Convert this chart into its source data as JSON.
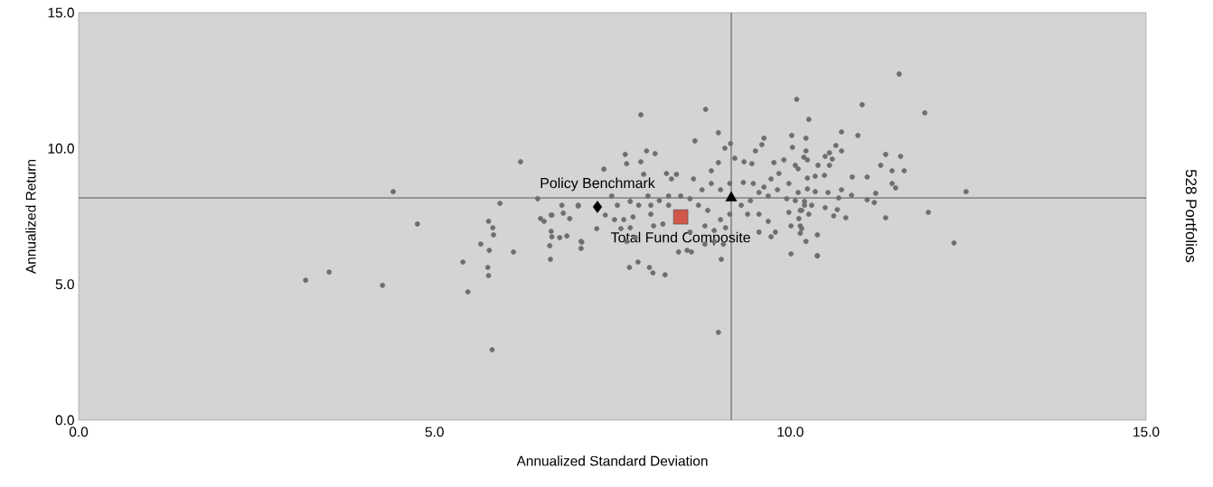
{
  "chart_data": {
    "type": "scatter",
    "xlabel": "Annualized Standard Deviation",
    "ylabel": "Annualized Return",
    "annotations": [
      "528 Portfolios"
    ],
    "xlim": [
      0,
      15
    ],
    "ylim": [
      0,
      15
    ],
    "xticks": [
      {
        "value": 0,
        "label": "0.0"
      },
      {
        "value": 5,
        "label": "5.0"
      },
      {
        "value": 10,
        "label": "10.0"
      },
      {
        "value": 15,
        "label": "15.0"
      }
    ],
    "yticks": [
      {
        "value": 0,
        "label": "0.0"
      },
      {
        "value": 5,
        "label": "5.0"
      },
      {
        "value": 10,
        "label": "10.0"
      },
      {
        "value": 15,
        "label": "15.0"
      }
    ],
    "grid": false,
    "ref_lines": [
      {
        "axis": "x",
        "value": 9.17,
        "color": "#555555"
      },
      {
        "axis": "y",
        "value": 8.18,
        "color": "#555555"
      }
    ],
    "series": [
      {
        "color": "#6e6e6e",
        "marker": "circle",
        "x": [
          3.19,
          3.52,
          4.27,
          4.42,
          4.76,
          5.4,
          5.47,
          5.65,
          5.75,
          5.76,
          5.76,
          5.81,
          5.83,
          5.92,
          6.11,
          6.21,
          6.45,
          6.49,
          6.62,
          6.63,
          6.65,
          6.65,
          6.76,
          6.79,
          6.9,
          5.82,
          5.77,
          6.64,
          6.86,
          6.81,
          6.64,
          6.54,
          7.02,
          7.07,
          7.06,
          7.9,
          8.81,
          8.99,
          8.66,
          10.09,
          7.68,
          7.98,
          8.1,
          7.7,
          7.9,
          7.38,
          7.86,
          7.74,
          8.02,
          8.07,
          8.24,
          8.43,
          8.55,
          8.61,
          9.03,
          8.99,
          10.01,
          10.38,
          11.53,
          11.89,
          11.01,
          10.95,
          10.72,
          10.26,
          11.34,
          11.55,
          11.6,
          11.27,
          11.43,
          11.43,
          11.48,
          11.08,
          11.2,
          11.18,
          11.08,
          11.34,
          11.94,
          12.3,
          12.47,
          10.78,
          10.66,
          10.61,
          10.38,
          10.38,
          10.22,
          10.86,
          10.68,
          10.53,
          10.87,
          10.72,
          10.72,
          10.64,
          10.55,
          10.49,
          10.59,
          10.55,
          10.22,
          10.22,
          9.22,
          9.35,
          9.46,
          9.63,
          9.6,
          9.51,
          9.77,
          9.91,
          10.02,
          10.03,
          10.19,
          8.89,
          8.99,
          9.08,
          9.16,
          8.64,
          8.76,
          8.89,
          9.02,
          9.15,
          9.34,
          9.48,
          9.63,
          9.73,
          9.84,
          9.98,
          10.11,
          10.24,
          9.82,
          9.95,
          10.07,
          10.2,
          9.69,
          9.56,
          9.44,
          9.31,
          9.4,
          9.56,
          9.69,
          9.56,
          9.73,
          9.79,
          9.98,
          10.16,
          10.14,
          10.01,
          9.15,
          9.02,
          8.84,
          8.71,
          8.59,
          8.46,
          8.29,
          8.16,
          8.04,
          7.87,
          7.75,
          7.57,
          7.49,
          7.4,
          7.53,
          7.66,
          7.79,
          7.75,
          7.62,
          8.04,
          8.08,
          8.21,
          8.29,
          8.8,
          8.93,
          9.09,
          8.8,
          8.93,
          9.06,
          8.59,
          7.7,
          7.82,
          7.06,
          8.26,
          8.4,
          8.33,
          7.94,
          8.0,
          7.28,
          7.02,
          10.07,
          10.35,
          10.48,
          10.39,
          10.24,
          10.11,
          10.24,
          10.35,
          10.2,
          10.3,
          10.14,
          10.26,
          10.12,
          10.16,
          10.14,
          10.49
        ],
        "values": [
          5.15,
          5.45,
          4.96,
          8.41,
          7.22,
          5.82,
          4.72,
          6.48,
          5.62,
          7.32,
          5.32,
          2.59,
          6.82,
          7.98,
          6.19,
          9.51,
          8.15,
          7.42,
          6.42,
          5.92,
          7.55,
          6.75,
          6.72,
          7.91,
          7.42,
          7.08,
          6.25,
          6.95,
          6.78,
          7.62,
          7.55,
          7.32,
          7.88,
          6.55,
          6.32,
          11.24,
          11.44,
          10.58,
          10.28,
          11.81,
          9.78,
          9.91,
          9.81,
          9.44,
          9.51,
          9.24,
          5.82,
          5.62,
          5.62,
          5.42,
          5.35,
          6.19,
          6.25,
          6.19,
          5.92,
          3.23,
          6.12,
          6.05,
          12.74,
          11.31,
          11.61,
          10.48,
          10.61,
          11.07,
          9.78,
          9.71,
          9.18,
          9.38,
          9.18,
          8.71,
          8.55,
          8.95,
          8.35,
          8.01,
          8.11,
          7.45,
          7.65,
          6.52,
          8.41,
          7.45,
          7.75,
          7.52,
          6.82,
          6.05,
          6.58,
          8.28,
          8.18,
          8.38,
          8.95,
          8.48,
          9.91,
          10.11,
          9.84,
          9.71,
          9.61,
          9.38,
          10.38,
          9.91,
          9.64,
          9.51,
          9.44,
          10.38,
          10.14,
          9.91,
          9.48,
          9.58,
          10.48,
          10.04,
          9.68,
          9.18,
          9.48,
          10.01,
          10.18,
          8.88,
          8.48,
          8.71,
          8.48,
          8.71,
          8.75,
          8.71,
          8.58,
          8.88,
          9.08,
          8.71,
          9.25,
          8.91,
          8.48,
          8.15,
          8.08,
          7.91,
          8.25,
          8.38,
          8.08,
          7.91,
          7.58,
          7.58,
          7.32,
          6.92,
          6.75,
          6.92,
          7.65,
          7.72,
          7.15,
          7.15,
          7.58,
          7.38,
          7.72,
          7.91,
          8.15,
          8.25,
          8.25,
          8.08,
          7.91,
          7.91,
          8.05,
          7.91,
          8.25,
          7.55,
          7.38,
          7.38,
          7.48,
          7.08,
          7.05,
          7.58,
          7.15,
          7.22,
          7.91,
          7.15,
          6.98,
          7.08,
          6.48,
          6.58,
          6.48,
          6.92,
          6.58,
          6.72,
          6.58,
          9.08,
          9.05,
          8.88,
          9.05,
          8.25,
          7.05,
          7.91,
          9.38,
          8.98,
          9.01,
          9.38,
          9.58,
          8.38,
          8.51,
          8.41,
          8.05,
          7.91,
          7.72,
          7.58,
          7.42,
          7.05,
          6.88,
          7.82
        ]
      },
      {
        "color": "#000000",
        "marker": "triangle",
        "x": [
          9.17
        ],
        "values": [
          8.18
        ]
      },
      {
        "name": "Policy Benchmark",
        "color": "#000000",
        "marker": "diamond",
        "x": [
          7.29
        ],
        "values": [
          7.85
        ]
      },
      {
        "name": "Total Fund Composite",
        "color": "#d0574a",
        "marker": "square",
        "x": [
          8.46
        ],
        "values": [
          7.48
        ]
      }
    ]
  }
}
